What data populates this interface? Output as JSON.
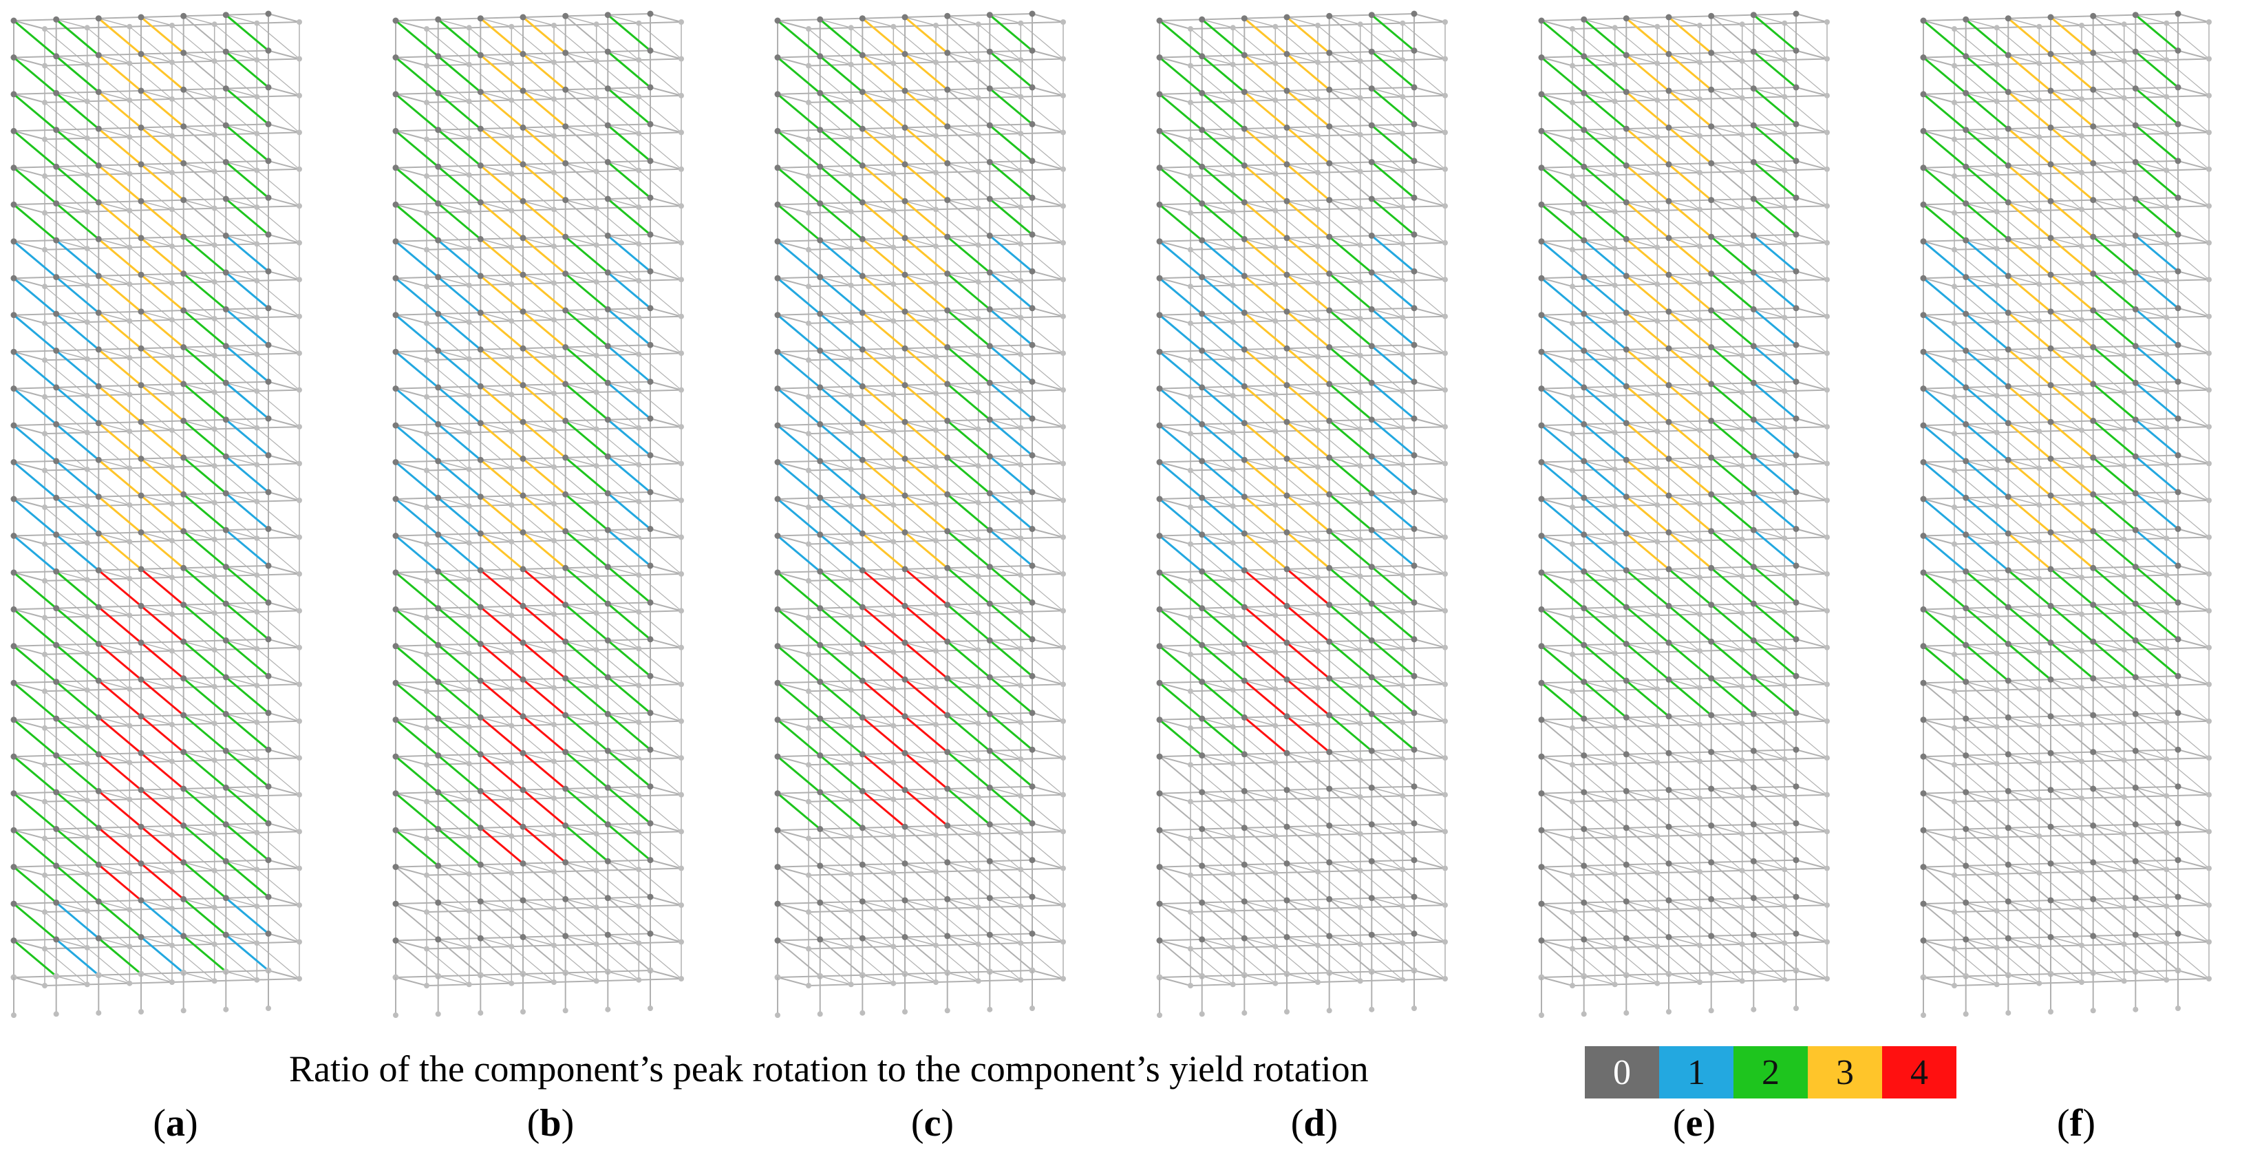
{
  "figure": {
    "panels": [
      {
        "label": "a",
        "severity": 1.0
      },
      {
        "label": "b",
        "severity": 0.8
      },
      {
        "label": "c",
        "severity": 0.6
      },
      {
        "label": "d",
        "severity": 0.45
      },
      {
        "label": "e",
        "severity": 0.3
      },
      {
        "label": "f",
        "severity": 0.2
      }
    ]
  },
  "legend": {
    "caption": "Ratio of the component’s peak rotation to the component’s yield rotation",
    "items": [
      {
        "value": "0",
        "color": "#6e6e6e"
      },
      {
        "value": "1",
        "color": "#23a8e0"
      },
      {
        "value": "2",
        "color": "#1ec51e"
      },
      {
        "value": "3",
        "color": "#ffc52a"
      },
      {
        "value": "4",
        "color": "#ff1010"
      }
    ]
  },
  "colors": {
    "frame": "#b0b0b0",
    "node": "#7a7a7a",
    "node_light": "#bdbdbd"
  }
}
